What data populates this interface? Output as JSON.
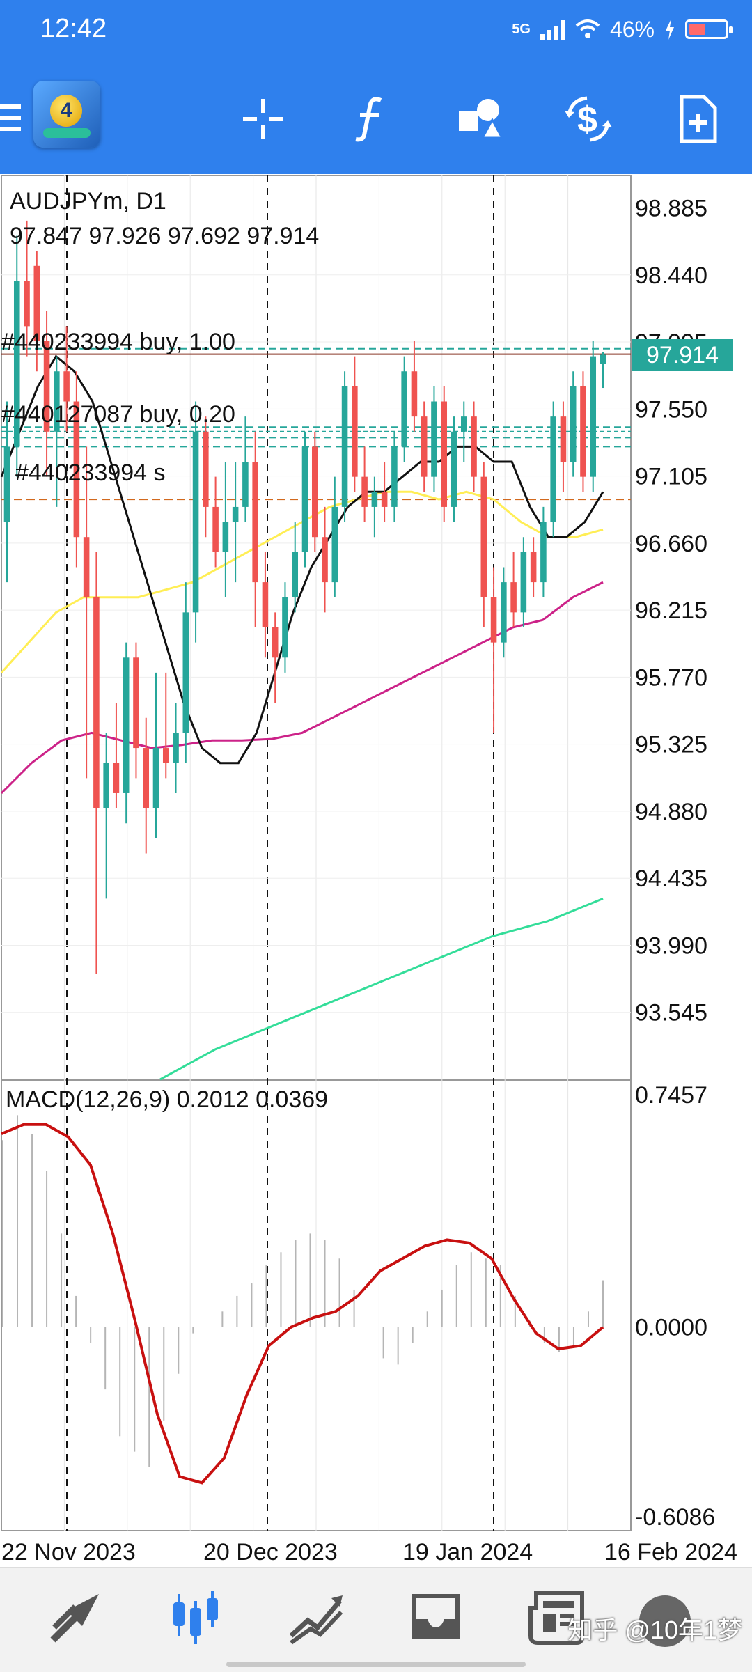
{
  "status_bar": {
    "time": "12:42",
    "network": "5G",
    "battery_percent": "46%",
    "battery_level": 0.46
  },
  "toolbar": {
    "items": [
      {
        "name": "menu",
        "icon": "menu-icon"
      },
      {
        "name": "app-logo",
        "icon": "mt4-logo-icon",
        "badge": "4"
      },
      {
        "name": "crosshair",
        "icon": "crosshair-icon"
      },
      {
        "name": "indicators",
        "icon": "function-icon"
      },
      {
        "name": "objects",
        "icon": "shapes-icon"
      },
      {
        "name": "trade",
        "icon": "dollar-arrows-icon"
      },
      {
        "name": "new-order",
        "icon": "new-document-icon"
      }
    ]
  },
  "chart": {
    "symbol_line": "AUDJPYm, D1",
    "ohlc_line": "97.847 97.926 97.692 97.914",
    "current_price": "97.914",
    "orders": [
      "#440233994 buy, 1.00",
      "#440127087 buy, 0.20",
      "#440233994 s"
    ],
    "price_axis": [
      "98.885",
      "98.440",
      "97.995",
      "97.550",
      "97.105",
      "96.660",
      "96.215",
      "95.770",
      "95.325",
      "94.880",
      "94.435",
      "93.990",
      "93.545"
    ],
    "macd_label": "MACD(12,26,9) 0.2012 0.0369",
    "macd_axis": [
      "0.7457",
      "0.0000",
      "-0.6086"
    ],
    "date_axis": [
      "22 Nov 2023",
      "20 Dec 2023",
      "19 Jan 2024",
      "16 Feb 2024"
    ],
    "colors": {
      "bull": "#26a69a",
      "bear": "#ef5350",
      "ma_fast": "#111111",
      "ma_mid": "#ffee55",
      "ma_slow": "#cc2288",
      "ma_long": "#33dd99",
      "macd_signal": "#c81010"
    }
  },
  "chart_data": {
    "type": "candlestick",
    "title": "AUDJPYm, D1",
    "ylim": [
      93.1,
      99.1
    ],
    "candles": [
      [
        96.8,
        97.6,
        96.4,
        97.3
      ],
      [
        97.3,
        98.7,
        97.1,
        98.4
      ],
      [
        98.4,
        98.8,
        97.9,
        98.1
      ],
      [
        98.5,
        98.6,
        97.8,
        98.0
      ],
      [
        98.0,
        98.2,
        97.1,
        97.4
      ],
      [
        97.4,
        97.9,
        96.9,
        97.8
      ],
      [
        97.8,
        98.1,
        97.4,
        97.6
      ],
      [
        97.6,
        97.8,
        96.5,
        96.7
      ],
      [
        96.7,
        97.3,
        95.1,
        96.3
      ],
      [
        96.3,
        96.6,
        93.8,
        94.9
      ],
      [
        94.9,
        95.4,
        94.3,
        95.2
      ],
      [
        95.2,
        95.6,
        94.9,
        95.0
      ],
      [
        95.0,
        96.0,
        94.8,
        95.9
      ],
      [
        95.9,
        96.0,
        95.1,
        95.3
      ],
      [
        95.3,
        95.5,
        94.6,
        94.9
      ],
      [
        94.9,
        95.8,
        94.7,
        95.3
      ],
      [
        95.3,
        95.8,
        95.1,
        95.2
      ],
      [
        95.2,
        95.6,
        95.0,
        95.4
      ],
      [
        95.4,
        96.4,
        95.2,
        96.2
      ],
      [
        96.2,
        97.6,
        96.0,
        97.4
      ],
      [
        97.4,
        97.5,
        96.7,
        96.9
      ],
      [
        96.9,
        97.1,
        96.5,
        96.6
      ],
      [
        96.6,
        97.2,
        96.3,
        96.8
      ],
      [
        96.8,
        97.2,
        96.4,
        96.9
      ],
      [
        96.9,
        97.5,
        96.8,
        97.2
      ],
      [
        97.2,
        97.4,
        96.1,
        96.4
      ],
      [
        96.4,
        96.6,
        95.9,
        96.1
      ],
      [
        96.1,
        96.2,
        95.6,
        95.9
      ],
      [
        95.9,
        96.4,
        95.8,
        96.3
      ],
      [
        96.3,
        96.8,
        96.2,
        96.6
      ],
      [
        96.6,
        97.4,
        96.5,
        97.3
      ],
      [
        97.3,
        97.4,
        96.6,
        96.7
      ],
      [
        96.7,
        96.9,
        96.2,
        96.4
      ],
      [
        96.4,
        97.1,
        96.3,
        96.9
      ],
      [
        96.9,
        97.8,
        96.8,
        97.7
      ],
      [
        97.7,
        97.9,
        97.0,
        97.1
      ],
      [
        97.1,
        97.3,
        96.8,
        96.9
      ],
      [
        96.9,
        97.1,
        96.7,
        97.0
      ],
      [
        97.0,
        97.2,
        96.8,
        96.9
      ],
      [
        96.9,
        97.4,
        96.8,
        97.3
      ],
      [
        97.3,
        97.9,
        97.2,
        97.8
      ],
      [
        97.8,
        98.0,
        97.4,
        97.5
      ],
      [
        97.5,
        97.6,
        97.0,
        97.1
      ],
      [
        97.1,
        97.7,
        97.0,
        97.6
      ],
      [
        97.6,
        97.7,
        96.8,
        96.9
      ],
      [
        96.9,
        97.5,
        96.8,
        97.4
      ],
      [
        97.4,
        97.6,
        97.2,
        97.5
      ],
      [
        97.5,
        97.6,
        97.0,
        97.1
      ],
      [
        97.1,
        97.2,
        96.1,
        96.3
      ],
      [
        96.3,
        96.5,
        95.4,
        96.0
      ],
      [
        96.0,
        96.5,
        95.9,
        96.4
      ],
      [
        96.4,
        96.6,
        96.1,
        96.2
      ],
      [
        96.2,
        96.7,
        96.1,
        96.6
      ],
      [
        96.6,
        96.7,
        96.3,
        96.4
      ],
      [
        96.4,
        96.9,
        96.3,
        96.8
      ],
      [
        96.8,
        97.6,
        96.7,
        97.5
      ],
      [
        97.5,
        97.6,
        97.0,
        97.2
      ],
      [
        97.2,
        97.8,
        97.1,
        97.7
      ],
      [
        97.7,
        97.8,
        97.0,
        97.1
      ],
      [
        97.1,
        98.0,
        97.0,
        97.9
      ],
      [
        97.85,
        97.93,
        97.69,
        97.91
      ]
    ],
    "series": [
      {
        "name": "",
        "values": [
          97.1,
          97.4,
          97.7,
          97.9,
          97.8,
          97.6,
          97.2,
          96.8,
          96.4,
          96.0,
          95.6,
          95.3,
          95.2,
          95.2,
          95.4,
          95.8,
          96.2,
          96.5,
          96.7,
          96.9,
          97.0,
          97.0,
          97.1,
          97.2,
          97.2,
          97.3,
          97.3,
          97.2,
          97.2,
          96.9,
          96.7,
          96.7,
          96.8,
          97.0
        ]
      },
      {
        "name": "",
        "values": [
          95.8,
          96.0,
          96.2,
          96.3,
          96.3,
          96.3,
          96.35,
          96.4,
          96.5,
          96.6,
          96.7,
          96.8,
          96.9,
          96.95,
          97.0,
          97.0,
          96.95,
          97.0,
          96.95,
          96.8,
          96.7,
          96.7,
          96.75
        ]
      },
      {
        "name": "",
        "values": [
          95.0,
          95.2,
          95.35,
          95.4,
          95.35,
          95.3,
          95.32,
          95.35,
          95.35,
          95.36,
          95.4,
          95.5,
          95.6,
          95.7,
          95.8,
          95.9,
          96.0,
          96.1,
          96.15,
          96.3,
          96.4
        ]
      },
      {
        "name": "",
        "values": [
          93.1,
          93.3,
          93.45,
          93.6,
          93.75,
          93.9,
          94.05,
          94.15,
          94.3
        ]
      }
    ],
    "macd": {
      "ylim": [
        -0.6086,
        0.7457
      ],
      "signal": [
        0.62,
        0.65,
        0.65,
        0.61,
        0.52,
        0.3,
        0.02,
        -0.28,
        -0.48,
        -0.5,
        -0.42,
        -0.22,
        -0.06,
        0.0,
        0.03,
        0.05,
        0.1,
        0.18,
        0.22,
        0.26,
        0.28,
        0.27,
        0.22,
        0.09,
        -0.02,
        -0.07,
        -0.06,
        0.0
      ],
      "histogram": [
        0.6,
        0.68,
        0.62,
        0.5,
        0.3,
        0.1,
        -0.05,
        -0.2,
        -0.35,
        -0.4,
        -0.45,
        -0.3,
        -0.15,
        -0.02,
        0.0,
        0.05,
        0.1,
        0.14,
        0.2,
        0.24,
        0.28,
        0.3,
        0.28,
        0.22,
        0.12,
        0.0,
        -0.1,
        -0.12,
        -0.05,
        0.05,
        0.12,
        0.2,
        0.24,
        0.22,
        0.2,
        0.1,
        0.02,
        -0.05,
        -0.08,
        -0.06,
        0.05,
        0.15
      ]
    }
  },
  "bottom_nav": {
    "items": [
      {
        "name": "quotes",
        "icon": "quotes-arrows-icon"
      },
      {
        "name": "chart",
        "icon": "candlestick-icon",
        "active": true
      },
      {
        "name": "trade",
        "icon": "trend-lines-icon"
      },
      {
        "name": "history",
        "icon": "inbox-icon"
      },
      {
        "name": "news",
        "icon": "newspaper-icon"
      }
    ],
    "watermark": "知乎 @10年1梦"
  }
}
